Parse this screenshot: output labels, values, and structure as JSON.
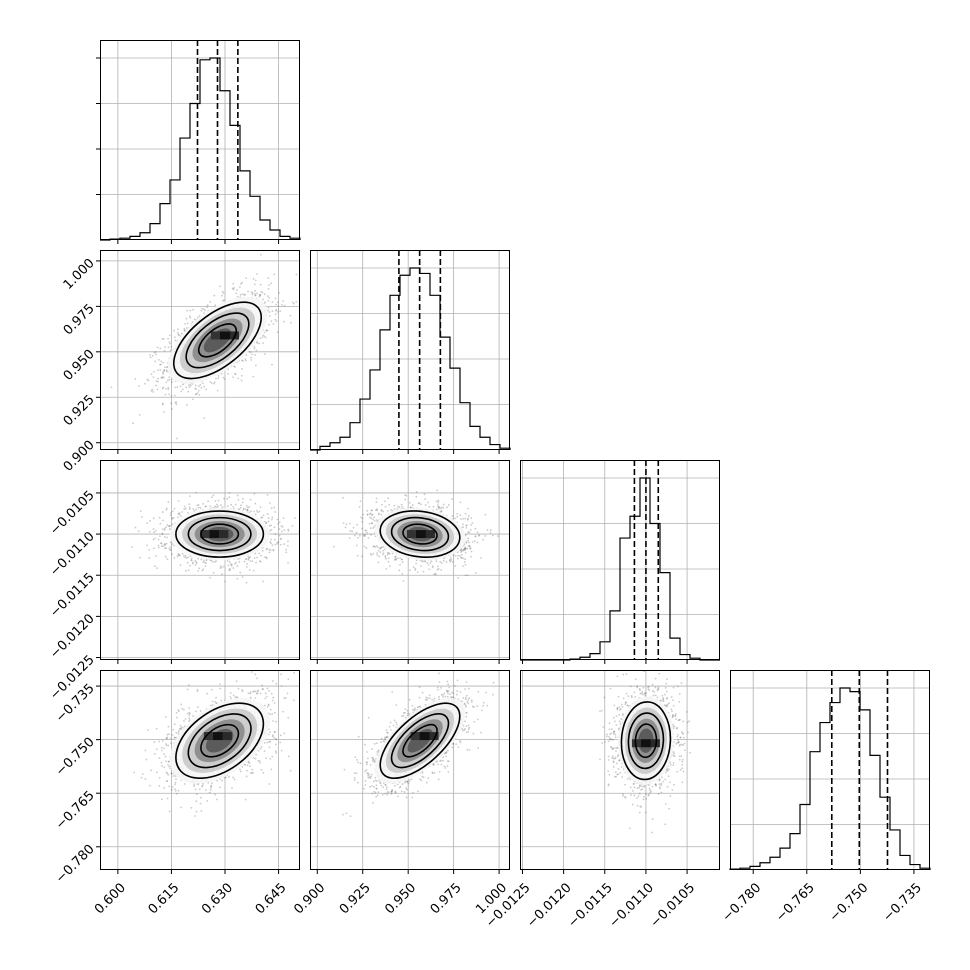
{
  "chart_data": {
    "type": "corner",
    "grid": true,
    "parameters": [
      {
        "range": [
          0.595,
          0.651
        ],
        "ticks": [
          0.6,
          0.615,
          0.63,
          0.645
        ],
        "tick_labels": [
          "0.600",
          "0.615",
          "0.630",
          "0.645"
        ],
        "quantiles": [
          0.6223,
          0.6279,
          0.6336
        ],
        "hist": [
          0.0,
          0.005,
          0.01,
          0.02,
          0.04,
          0.09,
          0.2,
          0.33,
          0.56,
          0.75,
          0.99,
          1.0,
          0.82,
          0.63,
          0.38,
          0.24,
          0.11,
          0.055,
          0.02,
          0.01
        ]
      },
      {
        "range": [
          0.896,
          1.006
        ],
        "ticks": [
          0.9,
          0.925,
          0.95,
          0.975,
          1.0
        ],
        "tick_labels": [
          "0.900",
          "0.925",
          "0.950",
          "0.975",
          "1.000"
        ],
        "quantiles": [
          0.9449,
          0.9563,
          0.9677
        ],
        "hist": [
          0.0,
          0.02,
          0.04,
          0.07,
          0.15,
          0.28,
          0.44,
          0.66,
          0.85,
          0.96,
          1.0,
          0.97,
          0.85,
          0.62,
          0.45,
          0.26,
          0.13,
          0.07,
          0.03,
          0.01
        ]
      },
      {
        "range": [
          -0.01253,
          -0.0101
        ],
        "ticks": [
          -0.0125,
          -0.012,
          -0.0115,
          -0.011,
          -0.0105
        ],
        "tick_labels": [
          "−0.0125",
          "−0.0120",
          "−0.0115",
          "−0.0110",
          "−0.0105"
        ],
        "quantiles": [
          -0.01114,
          -0.011,
          -0.01085
        ],
        "hist": [
          0.0,
          0.0,
          0.0,
          0.0,
          0.0,
          0.005,
          0.015,
          0.035,
          0.1,
          0.27,
          0.67,
          0.79,
          1.0,
          0.75,
          0.48,
          0.12,
          0.03,
          0.01,
          0.0,
          0.0
        ]
      },
      {
        "range": [
          -0.7865,
          -0.7305
        ],
        "ticks": [
          -0.78,
          -0.765,
          -0.75,
          -0.735
        ],
        "tick_labels": [
          "−0.780",
          "−0.765",
          "−0.750",
          "−0.735"
        ],
        "quantiles": [
          -0.758,
          -0.7503,
          -0.7424
        ],
        "hist": [
          0.005,
          0.01,
          0.02,
          0.04,
          0.07,
          0.12,
          0.2,
          0.36,
          0.65,
          0.81,
          0.92,
          1.0,
          0.98,
          0.88,
          0.63,
          0.4,
          0.22,
          0.08,
          0.03,
          0.01
        ]
      }
    ],
    "pairs": [
      {
        "x": 0,
        "y": 1,
        "mean": [
          0.6279,
          0.9563
        ],
        "sd": [
          0.007,
          0.012
        ],
        "rho": 0.6,
        "peak": [
          0.63,
          0.959
        ]
      },
      {
        "x": 0,
        "y": 2,
        "mean": [
          0.6285,
          -0.011
        ],
        "sd": [
          0.007,
          0.00016
        ],
        "rho": 0.0,
        "peak": [
          0.627,
          -0.011
        ]
      },
      {
        "x": 1,
        "y": 2,
        "mean": [
          0.9565,
          -0.011
        ],
        "sd": [
          0.0125,
          0.00016
        ],
        "rho": -0.15,
        "peak": [
          0.957,
          -0.011
        ]
      },
      {
        "x": 0,
        "y": 3,
        "mean": [
          0.6285,
          -0.7503
        ],
        "sd": [
          0.007,
          0.006
        ],
        "rho": 0.45,
        "peak": [
          0.628,
          -0.749
        ]
      },
      {
        "x": 1,
        "y": 3,
        "mean": [
          0.9565,
          -0.7503
        ],
        "sd": [
          0.0125,
          0.006
        ],
        "rho": 0.65,
        "peak": [
          0.959,
          -0.749
        ]
      },
      {
        "x": 2,
        "y": 3,
        "mean": [
          -0.011,
          -0.7503
        ],
        "sd": [
          0.00017,
          0.0062
        ],
        "rho": 0.05,
        "peak": [
          -0.011,
          -0.751
        ]
      }
    ]
  }
}
